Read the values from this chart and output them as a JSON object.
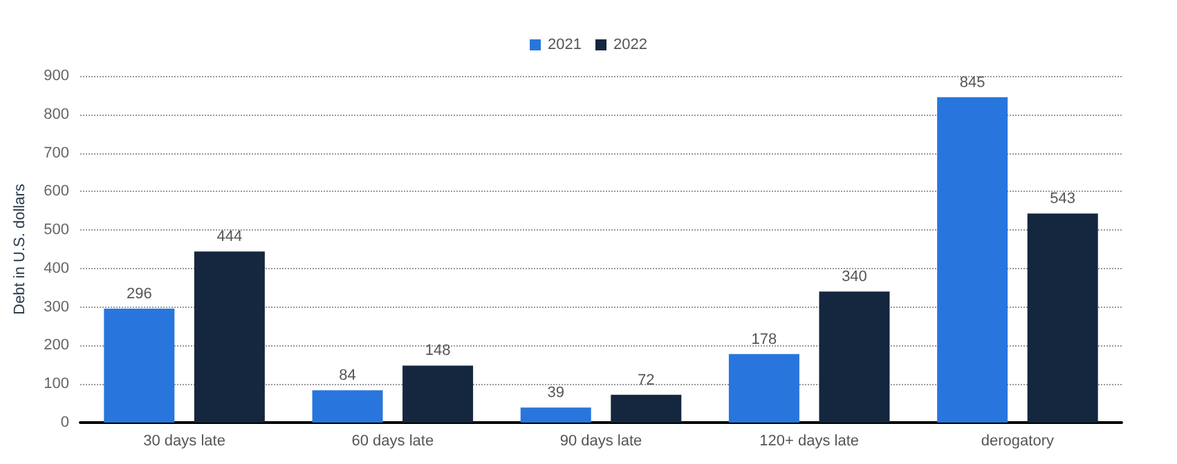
{
  "chart_data": {
    "type": "bar",
    "ylabel": "Debt in U.S. dollars",
    "categories": [
      "30 days late",
      "60 days late",
      "90 days late",
      "120+ days late",
      "derogatory"
    ],
    "series": [
      {
        "name": "2021",
        "color": "#2876dd",
        "values": [
          296,
          84,
          39,
          178,
          845
        ]
      },
      {
        "name": "2022",
        "color": "#14273e",
        "values": [
          444,
          148,
          72,
          340,
          543
        ]
      }
    ],
    "ylim": [
      0,
      900
    ],
    "yticks": [
      0,
      100,
      200,
      300,
      400,
      500,
      600,
      700,
      800,
      900
    ],
    "grid": "y",
    "legend": "top",
    "data_labels": true
  }
}
